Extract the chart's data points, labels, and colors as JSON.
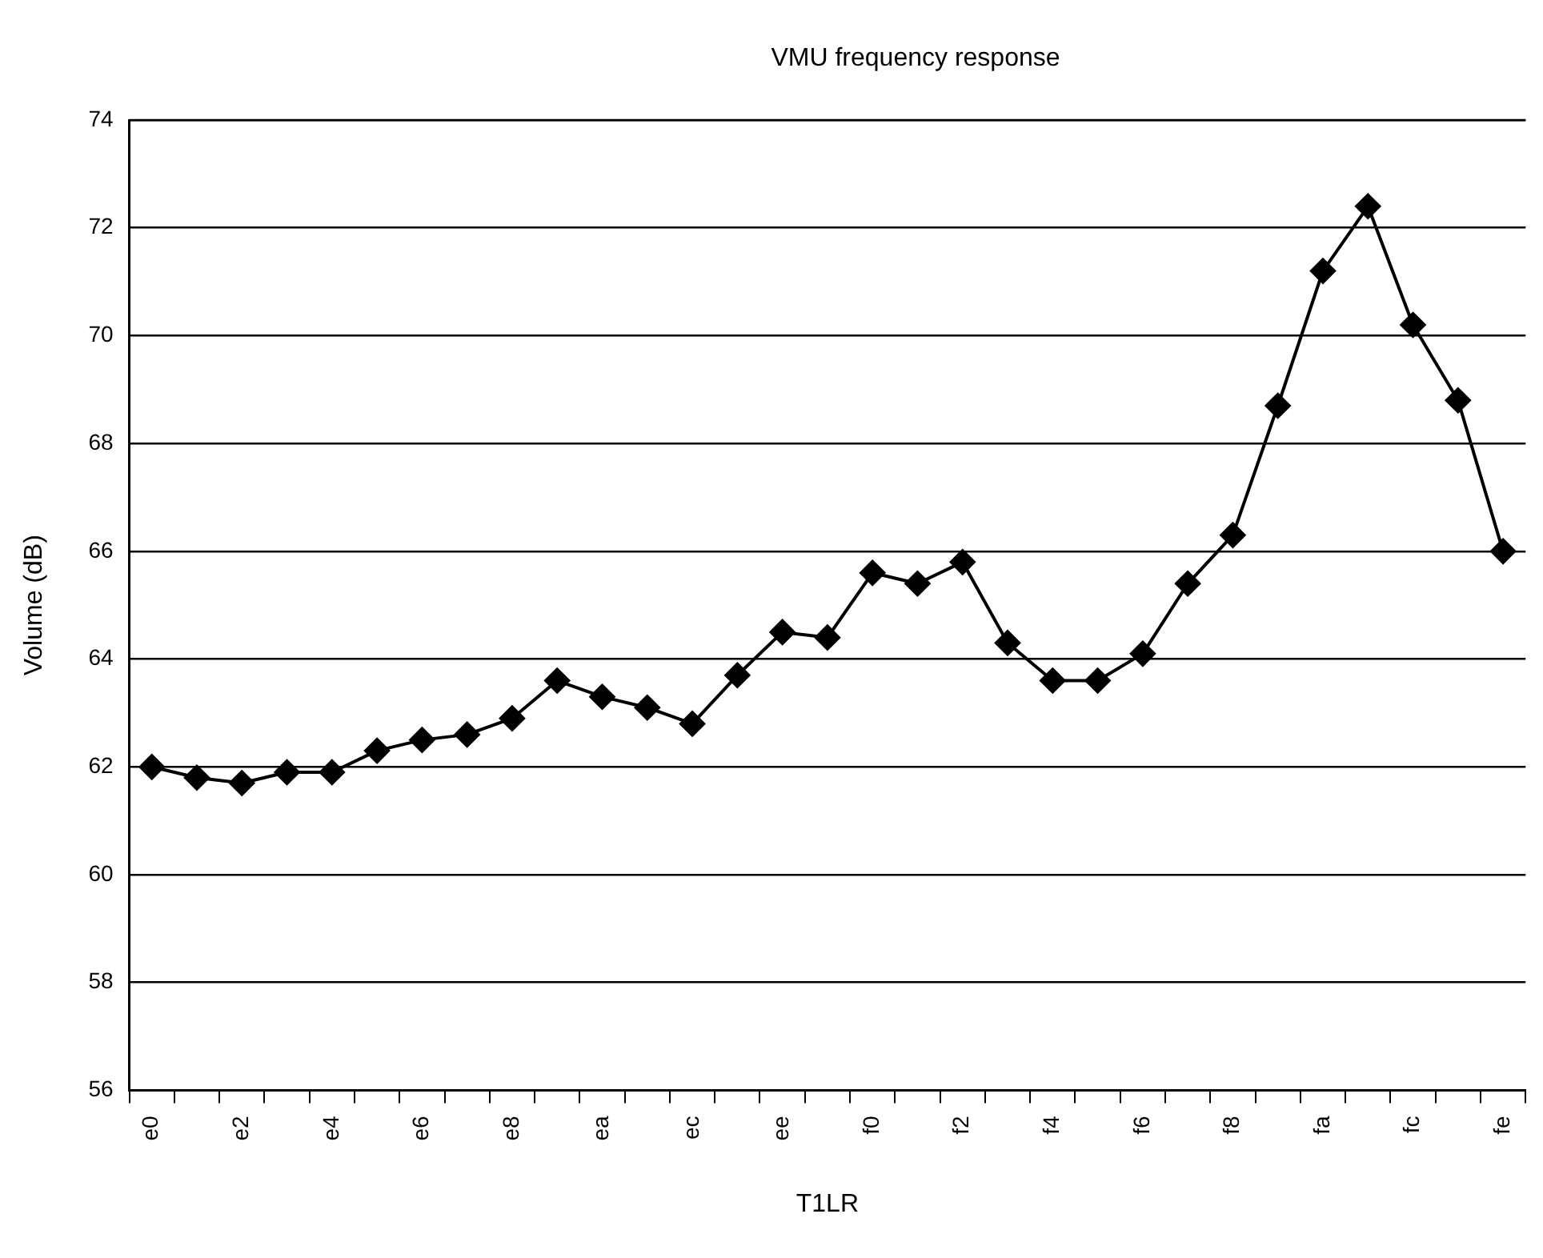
{
  "chart_data": {
    "type": "line",
    "title": "VMU frequency response",
    "xlabel": "T1LR",
    "ylabel": "Volume (dB)",
    "categories": [
      "e0",
      null,
      "e2",
      null,
      "e4",
      null,
      "e6",
      null,
      "e8",
      null,
      "ea",
      null,
      "ec",
      null,
      "ee",
      null,
      "f0",
      null,
      "f2",
      null,
      "f4",
      null,
      "f6",
      null,
      "f8",
      null,
      "fa",
      null,
      "fc",
      null,
      "fe"
    ],
    "series": [
      {
        "color": "#000000",
        "values": [
          62.0,
          61.8,
          61.7,
          61.9,
          61.9,
          62.3,
          62.5,
          62.6,
          62.9,
          63.6,
          63.3,
          63.1,
          62.8,
          63.7,
          64.5,
          64.4,
          65.6,
          65.4,
          65.8,
          64.3,
          63.6,
          63.6,
          64.1,
          65.4,
          66.3,
          68.7,
          71.2,
          72.4,
          70.2,
          68.8,
          66.0
        ]
      }
    ],
    "ylim": [
      56,
      74
    ],
    "yticks": [
      56,
      58,
      60,
      62,
      64,
      66,
      68,
      70,
      72,
      74
    ],
    "grid": "y",
    "legend": false,
    "marker": "diamond",
    "line_style": "solid"
  }
}
